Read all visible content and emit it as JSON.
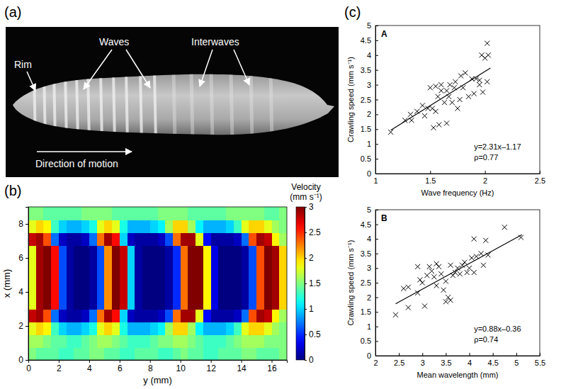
{
  "chart_data": [
    {
      "type": "image",
      "panel": "(a)",
      "annotations": [
        "Rim",
        "Waves",
        "Interwaves",
        "Direction of motion"
      ]
    },
    {
      "type": "heatmap",
      "panel": "(b)",
      "x_label": "y (mm)",
      "y_label": "x (mm)",
      "x": [
        0.25,
        0.75,
        1.25,
        1.75,
        2.25,
        2.75,
        3.25,
        3.75,
        4.25,
        4.75,
        5.25,
        5.75,
        6.25,
        6.75,
        7.25,
        7.75,
        8.25,
        8.75,
        9.25,
        9.75,
        10.25,
        10.75,
        11.25,
        11.75,
        12.25,
        12.75,
        13.25,
        13.75,
        14.25,
        14.75,
        15.25,
        15.75,
        16.25,
        16.75
      ],
      "y": [
        0.375,
        1.125,
        1.875,
        2.625,
        3.375,
        4.125,
        4.875,
        5.625,
        6.375,
        7.125,
        7.875,
        8.625
      ],
      "cells": [
        [
          1.5,
          1.4,
          1.4,
          1.4,
          1.3,
          1.3,
          1.4,
          1.4,
          1.5,
          1.5,
          1.4,
          1.4,
          1.3,
          1.3,
          1.4,
          1.4,
          1.4,
          1.3,
          1.3,
          1.4,
          1.5,
          1.4,
          1.4,
          1.3,
          1.3,
          1.4,
          1.4,
          1.4,
          1.5,
          1.5,
          1.4,
          1.4,
          1.4,
          1.5
        ],
        [
          1.6,
          1.6,
          1.5,
          1.4,
          1.4,
          1.3,
          1.3,
          1.4,
          1.5,
          1.6,
          1.6,
          1.5,
          1.4,
          1.3,
          1.3,
          1.3,
          1.4,
          1.5,
          1.5,
          1.6,
          1.6,
          1.5,
          1.4,
          1.3,
          1.3,
          1.3,
          1.4,
          1.5,
          1.6,
          1.6,
          1.6,
          1.5,
          1.5,
          1.5
        ],
        [
          1.8,
          2.0,
          1.9,
          1.3,
          1.0,
          0.9,
          0.9,
          1.0,
          1.2,
          1.8,
          2.0,
          1.8,
          1.2,
          0.9,
          0.9,
          0.9,
          1.0,
          1.1,
          1.6,
          2.0,
          2.0,
          1.6,
          1.1,
          0.9,
          0.9,
          0.9,
          1.0,
          1.3,
          1.8,
          2.0,
          2.0,
          1.8,
          1.6,
          1.5
        ],
        [
          2.8,
          2.9,
          2.4,
          0.7,
          0.2,
          0.1,
          0.1,
          0.2,
          0.7,
          2.3,
          2.9,
          2.6,
          1.0,
          0.2,
          0.1,
          0.1,
          0.1,
          0.2,
          0.6,
          2.3,
          2.9,
          2.9,
          1.8,
          0.4,
          0.1,
          0.1,
          0.1,
          0.2,
          0.7,
          2.4,
          2.9,
          2.8,
          1.9,
          1.6
        ],
        [
          1.8,
          2.9,
          3.0,
          2.6,
          0.6,
          0.1,
          0.0,
          0.0,
          0.1,
          0.6,
          2.2,
          3.0,
          2.8,
          1.0,
          0.1,
          0.0,
          0.0,
          0.0,
          0.1,
          0.5,
          2.3,
          3.0,
          3.0,
          1.9,
          0.3,
          0.0,
          0.0,
          0.0,
          0.1,
          0.6,
          2.4,
          3.0,
          2.9,
          2.0
        ],
        [
          1.8,
          2.9,
          3.0,
          2.6,
          0.6,
          0.1,
          0.0,
          0.0,
          0.1,
          0.6,
          2.2,
          3.0,
          2.8,
          1.0,
          0.1,
          0.0,
          0.0,
          0.0,
          0.1,
          0.5,
          2.3,
          3.0,
          3.0,
          1.9,
          0.3,
          0.0,
          0.0,
          0.0,
          0.1,
          0.6,
          2.4,
          3.0,
          2.9,
          2.0
        ],
        [
          1.8,
          2.9,
          3.0,
          2.6,
          0.6,
          0.1,
          0.0,
          0.0,
          0.1,
          0.6,
          2.2,
          3.0,
          2.8,
          1.0,
          0.1,
          0.0,
          0.0,
          0.0,
          0.1,
          0.5,
          2.3,
          3.0,
          3.0,
          1.9,
          0.3,
          0.0,
          0.0,
          0.0,
          0.1,
          0.6,
          2.4,
          3.0,
          2.9,
          2.0
        ],
        [
          1.8,
          2.9,
          3.0,
          2.6,
          0.6,
          0.1,
          0.0,
          0.0,
          0.1,
          0.6,
          2.2,
          3.0,
          2.8,
          1.0,
          0.1,
          0.0,
          0.0,
          0.0,
          0.1,
          0.5,
          2.3,
          3.0,
          3.0,
          1.9,
          0.3,
          0.0,
          0.0,
          0.0,
          0.1,
          0.6,
          2.4,
          3.0,
          2.9,
          2.0
        ],
        [
          1.8,
          2.9,
          3.0,
          2.6,
          0.6,
          0.1,
          0.0,
          0.0,
          0.1,
          0.6,
          2.2,
          3.0,
          2.8,
          1.0,
          0.1,
          0.0,
          0.0,
          0.0,
          0.1,
          0.5,
          2.3,
          3.0,
          3.0,
          1.9,
          0.3,
          0.0,
          0.0,
          0.0,
          0.1,
          0.6,
          2.4,
          3.0,
          2.9,
          2.0
        ],
        [
          2.8,
          2.9,
          2.4,
          0.7,
          0.2,
          0.1,
          0.1,
          0.2,
          0.7,
          2.3,
          2.9,
          2.6,
          1.0,
          0.2,
          0.1,
          0.1,
          0.1,
          0.2,
          0.6,
          2.3,
          2.9,
          2.9,
          1.8,
          0.4,
          0.1,
          0.1,
          0.1,
          0.2,
          0.7,
          2.4,
          2.9,
          2.8,
          1.9,
          1.6
        ],
        [
          1.8,
          2.0,
          1.9,
          1.3,
          1.0,
          0.9,
          0.9,
          1.0,
          1.2,
          1.8,
          2.0,
          1.8,
          1.2,
          0.9,
          0.9,
          0.9,
          1.0,
          1.1,
          1.6,
          2.0,
          2.0,
          1.6,
          1.1,
          0.9,
          0.9,
          0.9,
          1.0,
          1.3,
          1.8,
          2.0,
          2.0,
          1.8,
          1.6,
          1.5
        ],
        [
          1.5,
          1.5,
          1.4,
          1.4,
          1.4,
          1.4,
          1.4,
          1.5,
          1.5,
          1.5,
          1.5,
          1.4,
          1.4,
          1.4,
          1.4,
          1.4,
          1.4,
          1.5,
          1.5,
          1.5,
          1.5,
          1.4,
          1.4,
          1.4,
          1.4,
          1.4,
          1.5,
          1.5,
          1.5,
          1.5,
          1.5,
          1.4,
          1.4,
          1.5
        ]
      ],
      "xlim": [
        0,
        17
      ],
      "xticks": [
        0,
        2,
        4,
        6,
        8,
        10,
        12,
        14,
        16
      ],
      "ylim": [
        0,
        9
      ],
      "yticks": [
        0,
        2,
        4,
        6,
        8
      ],
      "colorbar": {
        "label": "Velocity (mm s⁻¹)",
        "range": [
          0,
          3
        ],
        "ticks": [
          0,
          0.5,
          1,
          1.5,
          2,
          2.5,
          3
        ]
      }
    },
    {
      "type": "scatter",
      "panel": "(c)",
      "title": "A",
      "x_label": "Wave frequency (Hz)",
      "y_label": "Crawling speed (mm s⁻¹)",
      "marker": "x",
      "color": "#000000",
      "x": [
        1.14,
        1.27,
        1.32,
        1.33,
        1.38,
        1.43,
        1.45,
        1.48,
        1.5,
        1.52,
        1.53,
        1.55,
        1.55,
        1.57,
        1.58,
        1.6,
        1.6,
        1.63,
        1.65,
        1.65,
        1.67,
        1.68,
        1.7,
        1.72,
        1.73,
        1.75,
        1.77,
        1.78,
        1.8,
        1.82,
        1.85,
        1.88,
        1.9,
        1.92,
        1.95,
        1.95,
        1.97,
        1.98,
        2.0,
        2.02,
        2.02,
        2.03
      ],
      "values": [
        1.4,
        1.8,
        2.0,
        1.8,
        2.1,
        2.3,
        1.95,
        2.2,
        2.9,
        2.2,
        1.55,
        2.1,
        2.95,
        2.6,
        1.65,
        2.8,
        3.0,
        2.4,
        2.8,
        1.7,
        2.6,
        3.0,
        2.4,
        2.9,
        3.1,
        2.2,
        2.5,
        3.3,
        2.9,
        3.4,
        2.6,
        3.2,
        2.7,
        3.2,
        3.0,
        3.15,
        4.0,
        2.75,
        3.9,
        4.4,
        3.1,
        4.0
      ],
      "fit": {
        "slope": 2.31,
        "intercept": -1.17,
        "x": [
          1.14,
          2.05
        ]
      },
      "annotations": [
        "y=2.31x–1.17",
        "ρ=0.77"
      ],
      "xlim": [
        1,
        2.5
      ],
      "xticks": [
        1,
        1.5,
        2,
        2.5
      ],
      "ylim": [
        0,
        5
      ],
      "yticks": [
        0,
        0.5,
        1,
        1.5,
        2,
        2.5,
        3,
        3.5,
        4,
        4.5,
        5
      ]
    },
    {
      "type": "scatter",
      "title": "B",
      "x_label": "Mean wavelength (mm)",
      "y_label": "Crawling speed (mm s⁻¹)",
      "marker": "x",
      "color": "#000000",
      "x": [
        2.43,
        2.6,
        2.7,
        2.7,
        2.9,
        2.9,
        2.95,
        3.0,
        3.05,
        3.1,
        3.15,
        3.2,
        3.25,
        3.3,
        3.3,
        3.35,
        3.4,
        3.45,
        3.5,
        3.5,
        3.55,
        3.6,
        3.6,
        3.65,
        3.7,
        3.75,
        3.8,
        3.85,
        3.9,
        3.95,
        4.0,
        4.05,
        4.1,
        4.1,
        4.15,
        4.25,
        4.3,
        4.35,
        4.4,
        4.75,
        5.1
      ],
      "values": [
        1.4,
        2.3,
        2.35,
        1.65,
        3.05,
        2.15,
        2.6,
        2.5,
        1.7,
        2.75,
        3.05,
        2.9,
        2.7,
        3.15,
        2.4,
        3.05,
        2.8,
        2.25,
        2.55,
        1.85,
        2.0,
        1.9,
        3.1,
        2.75,
        2.85,
        3.0,
        2.8,
        3.1,
        3.2,
        2.85,
        3.0,
        3.35,
        4.0,
        2.85,
        3.4,
        3.5,
        3.1,
        3.95,
        3.45,
        4.4,
        4.05
      ],
      "fit": {
        "slope": 0.88,
        "intercept": -0.36,
        "x": [
          2.43,
          5.12
        ]
      },
      "annotations": [
        "y=0.88x–0.36",
        "ρ=0.74"
      ],
      "xlim": [
        2,
        5.5
      ],
      "xticks": [
        2,
        2.5,
        3,
        3.5,
        4,
        4.5,
        5,
        5.5
      ],
      "ylim": [
        0,
        5
      ],
      "yticks": [
        0,
        0.5,
        1,
        1.5,
        2,
        2.5,
        3,
        3.5,
        4,
        4.5,
        5
      ]
    }
  ]
}
